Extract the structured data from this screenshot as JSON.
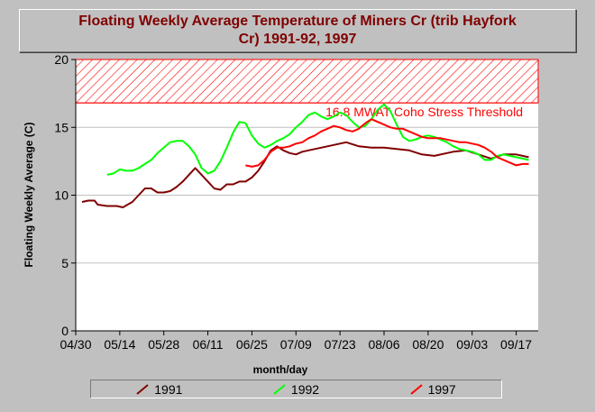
{
  "chart_data": {
    "type": "line",
    "title_line1": "Floating Weekly Average Temperature of Miners Cr (trib Hayfork",
    "title_line2": "Cr) 1991-92, 1997",
    "xlabel": "month/day",
    "ylabel": "Floating Weekly Average (C)",
    "x_ticks": [
      "04/30",
      "05/14",
      "05/28",
      "06/11",
      "06/25",
      "07/09",
      "07/23",
      "08/06",
      "08/20",
      "09/03",
      "09/17"
    ],
    "xlim": [
      0,
      147
    ],
    "ylim": [
      0,
      20
    ],
    "y_ticks": [
      "0",
      "5",
      "10",
      "15",
      "20"
    ],
    "grid": true,
    "threshold": {
      "value": 16.8,
      "label": "16.8 MWAT Coho Stress Threshold",
      "band_top": 20
    },
    "series": [
      {
        "name": "1991",
        "color": "#800000",
        "x": [
          2,
          4,
          6,
          7,
          10,
          13,
          15,
          18,
          20,
          22,
          24,
          26,
          28,
          30,
          32,
          34,
          36,
          38,
          40,
          42,
          44,
          46,
          48,
          50,
          52,
          54,
          56,
          58,
          60,
          62,
          64,
          66,
          68,
          70,
          72,
          74,
          78,
          82,
          86,
          90,
          94,
          98,
          102,
          106,
          110,
          114,
          118,
          120,
          124,
          128,
          132,
          136,
          140,
          144
        ],
        "y": [
          9.5,
          9.6,
          9.6,
          9.3,
          9.2,
          9.2,
          9.1,
          9.5,
          10.0,
          10.5,
          10.5,
          10.2,
          10.2,
          10.3,
          10.6,
          11.0,
          11.5,
          12.0,
          11.5,
          11.0,
          10.5,
          10.4,
          10.8,
          10.8,
          11.0,
          11.0,
          11.3,
          11.8,
          12.5,
          13.3,
          13.6,
          13.3,
          13.1,
          13.0,
          13.2,
          13.3,
          13.5,
          13.7,
          13.9,
          13.6,
          13.5,
          13.5,
          13.4,
          13.3,
          13.0,
          12.9,
          13.1,
          13.2,
          13.3,
          13.0,
          12.7,
          13.0,
          13.0,
          12.8
        ]
      },
      {
        "name": "1992",
        "color": "#00ff00",
        "x": [
          10,
          12,
          14,
          16,
          18,
          20,
          22,
          24,
          26,
          28,
          30,
          32,
          34,
          36,
          38,
          40,
          42,
          44,
          46,
          48,
          50,
          52,
          54,
          56,
          58,
          60,
          62,
          64,
          66,
          68,
          70,
          72,
          74,
          76,
          78,
          80,
          82,
          84,
          86,
          88,
          90,
          92,
          94,
          96,
          98,
          100,
          102,
          104,
          106,
          108,
          110,
          112,
          114,
          116,
          118,
          120,
          122,
          124,
          126,
          128,
          130,
          132,
          134,
          136,
          138,
          140,
          142,
          144
        ],
        "y": [
          11.5,
          11.6,
          11.9,
          11.8,
          11.8,
          12.0,
          12.3,
          12.6,
          13.1,
          13.5,
          13.9,
          14.0,
          14.0,
          13.6,
          13.0,
          12.0,
          11.6,
          11.8,
          12.5,
          13.5,
          14.6,
          15.4,
          15.3,
          14.4,
          13.8,
          13.5,
          13.7,
          14.0,
          14.2,
          14.5,
          15.0,
          15.4,
          15.9,
          16.1,
          15.8,
          15.6,
          15.8,
          16.1,
          15.9,
          15.4,
          15.0,
          15.1,
          15.6,
          16.3,
          16.7,
          16.2,
          15.2,
          14.3,
          14.0,
          14.1,
          14.3,
          14.4,
          14.3,
          14.1,
          13.9,
          13.6,
          13.4,
          13.3,
          13.2,
          13.0,
          12.6,
          12.6,
          12.9,
          13.0,
          12.9,
          12.8,
          12.7,
          12.6
        ]
      },
      {
        "name": "1997",
        "color": "#ff0000",
        "x": [
          54,
          56,
          58,
          60,
          62,
          64,
          66,
          68,
          70,
          72,
          74,
          76,
          78,
          80,
          82,
          84,
          86,
          88,
          90,
          92,
          94,
          96,
          98,
          100,
          102,
          104,
          106,
          108,
          110,
          112,
          114,
          116,
          118,
          120,
          122,
          124,
          126,
          128,
          130,
          132,
          134,
          136,
          138,
          140,
          142,
          144
        ],
        "y": [
          12.2,
          12.1,
          12.2,
          12.6,
          13.2,
          13.5,
          13.5,
          13.6,
          13.8,
          13.9,
          14.2,
          14.4,
          14.7,
          14.9,
          15.1,
          15.0,
          14.8,
          14.7,
          14.9,
          15.3,
          15.6,
          15.4,
          15.2,
          15.0,
          14.9,
          14.9,
          14.7,
          14.5,
          14.3,
          14.2,
          14.2,
          14.2,
          14.1,
          14.0,
          13.9,
          13.9,
          13.8,
          13.7,
          13.5,
          13.2,
          12.8,
          12.6,
          12.4,
          12.2,
          12.3,
          12.3
        ]
      }
    ]
  }
}
